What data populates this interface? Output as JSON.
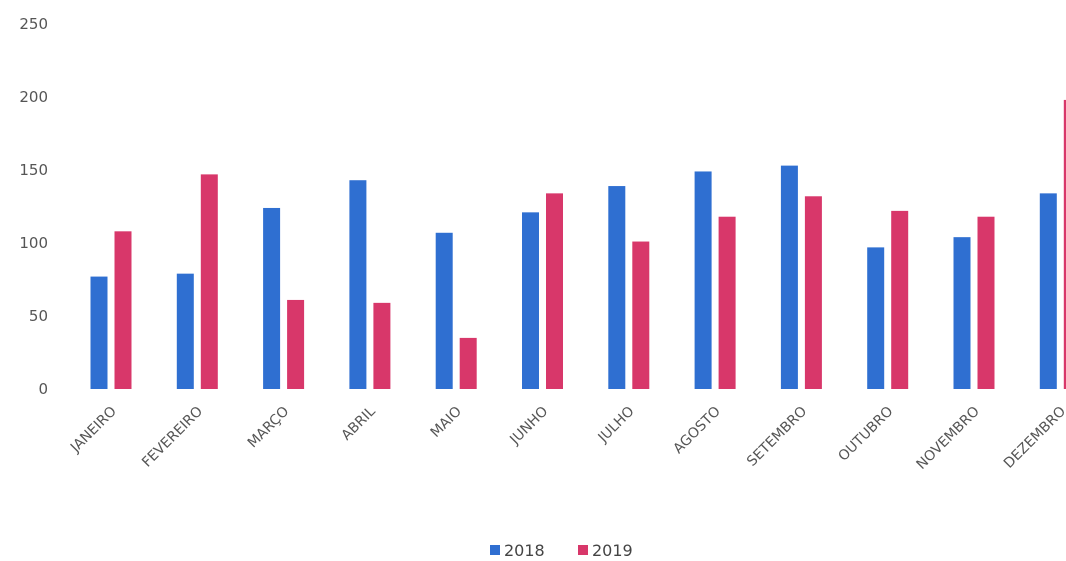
{
  "chart_data": {
    "type": "bar",
    "title": "",
    "xlabel": "",
    "ylabel": "",
    "categories": [
      "JANEIRO",
      "FEVEREIRO",
      "MARÇO",
      "ABRIL",
      "MAIO",
      "JUNHO",
      "JULHO",
      "AGOSTO",
      "SETEMBRO",
      "OUTUBRO",
      "NOVEMBRO",
      "DEZEMBRO"
    ],
    "series": [
      {
        "name": "2018",
        "color": "#2f6fd1",
        "values": [
          77,
          79,
          124,
          143,
          107,
          121,
          139,
          149,
          153,
          97,
          104,
          134
        ]
      },
      {
        "name": "2019",
        "color": "#d8376a",
        "values": [
          108,
          147,
          61,
          59,
          35,
          134,
          101,
          118,
          132,
          122,
          118,
          198
        ]
      }
    ],
    "ylim": [
      0,
      250
    ],
    "yticks": [
      0,
      50,
      100,
      150,
      200,
      250
    ],
    "grid": false,
    "legend_position": "bottom"
  }
}
